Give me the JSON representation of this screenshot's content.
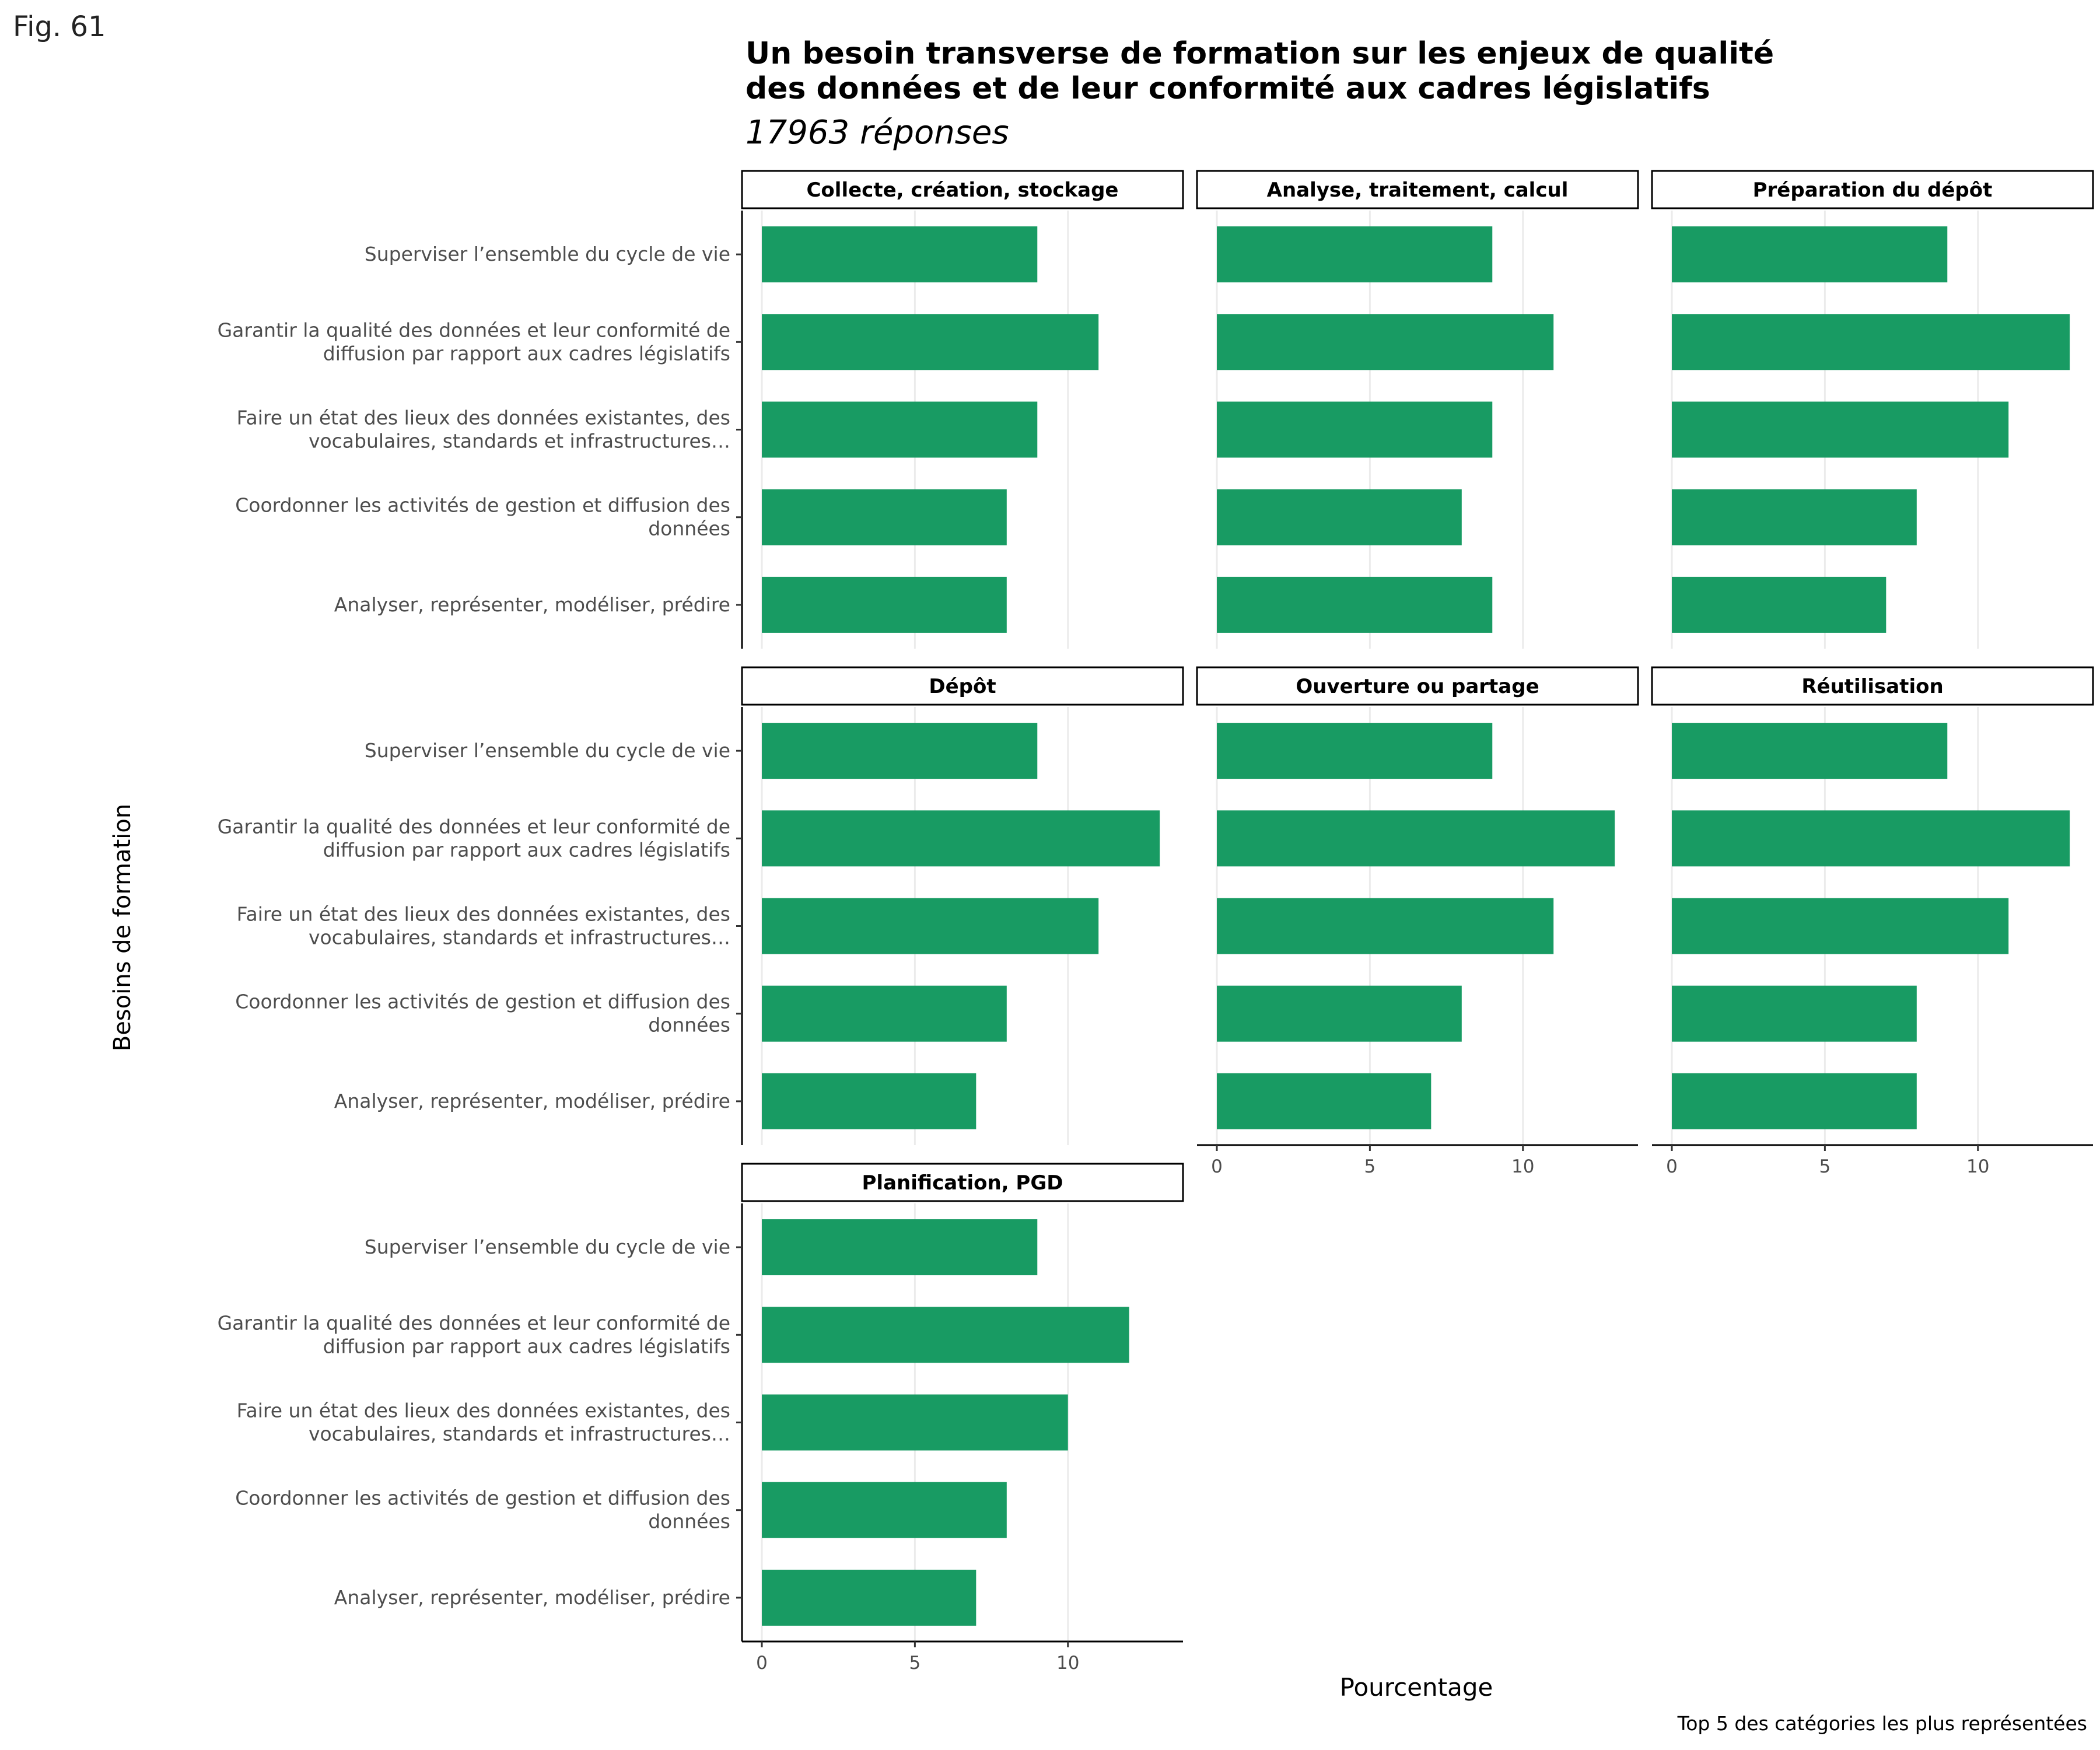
{
  "figure_label": "Fig. 61",
  "chart_data": {
    "type": "bar",
    "orientation": "horizontal",
    "faceted": true,
    "title": [
      "Un besoin transverse de formation sur les enjeux de qualité",
      "des données et de leur conformité aux cadres législatifs"
    ],
    "subtitle": "17963 réponses",
    "xlabel": "Pourcentage",
    "ylabel": "Besoins de formation",
    "caption": "Top 5 des catégories les plus représentées",
    "xlim": [
      0,
      13.5
    ],
    "xticks": [
      0,
      5,
      10
    ],
    "grid": "vertical-major",
    "bar_color": "#189b63",
    "categories": [
      [
        "Superviser l’ensemble du cycle de vie"
      ],
      [
        "Garantir la qualité des données et leur conformité de",
        "diffusion par rapport aux cadres législatifs"
      ],
      [
        "Faire un état des lieux des données existantes, des",
        "vocabulaires, standards et infrastructures…"
      ],
      [
        "Coordonner les activités de gestion et diffusion des",
        "données"
      ],
      [
        "Analyser, représenter, modéliser, prédire"
      ]
    ],
    "facets": [
      {
        "name": "Collecte, création, stockage",
        "values": [
          9,
          11,
          9,
          8,
          8
        ]
      },
      {
        "name": "Analyse, traitement, calcul",
        "values": [
          9,
          11,
          9,
          8,
          9
        ]
      },
      {
        "name": "Préparation du dépôt",
        "values": [
          9,
          13,
          11,
          8,
          7
        ]
      },
      {
        "name": "Dépôt",
        "values": [
          9,
          13,
          11,
          8,
          7
        ]
      },
      {
        "name": "Ouverture ou partage",
        "values": [
          9,
          13,
          11,
          8,
          7
        ]
      },
      {
        "name": "Réutilisation",
        "values": [
          9,
          13,
          11,
          8,
          8
        ]
      },
      {
        "name": "Planification, PGD",
        "values": [
          9,
          12,
          10,
          8,
          7
        ]
      }
    ]
  }
}
